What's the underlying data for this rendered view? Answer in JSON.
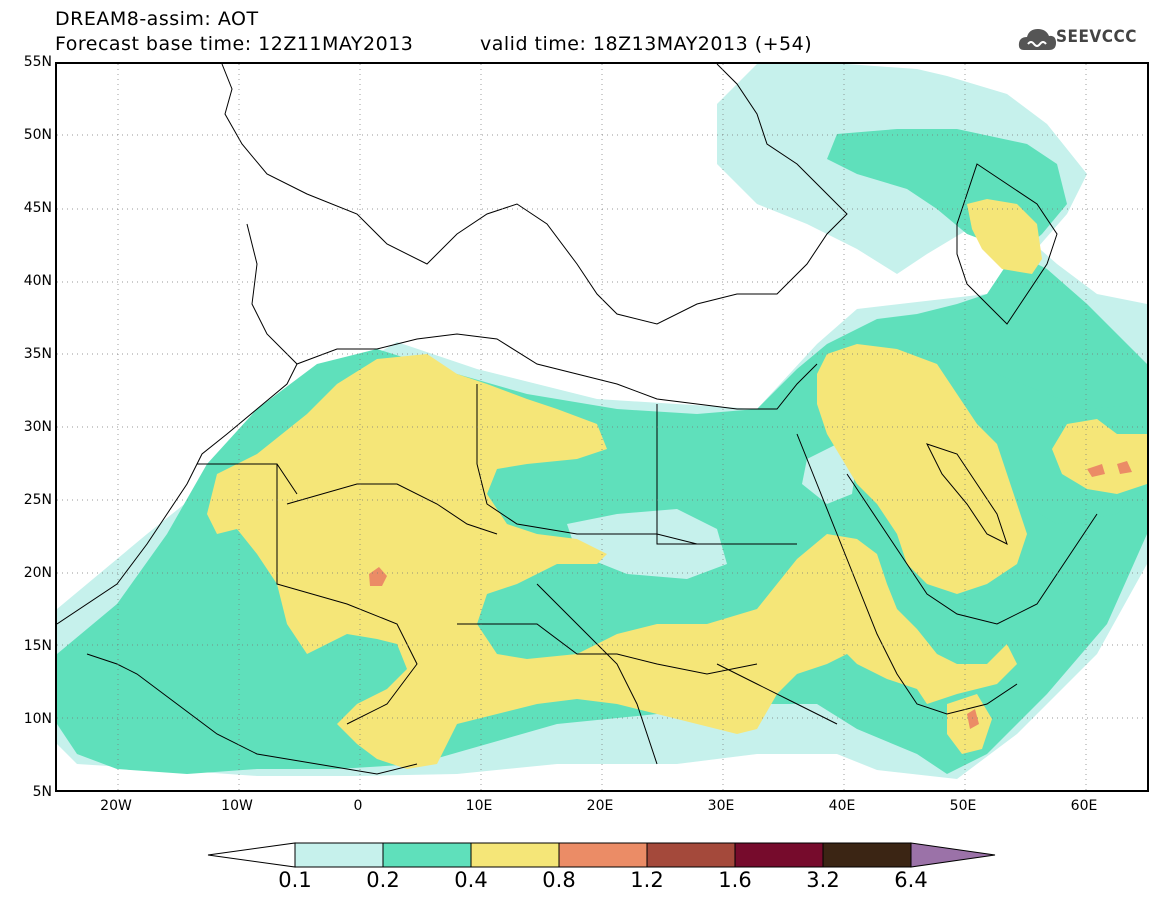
{
  "header": {
    "line1": "DREAM8-assim: AOT",
    "line2_left": "Forecast base time: 12Z11MAY2013",
    "line2_right": "valid time: 18Z13MAY2013 (+54)"
  },
  "logo": {
    "text": "SEEVCCC",
    "icon": "cloud-logo-icon"
  },
  "map": {
    "lon_range": [
      -25,
      65
    ],
    "lat_range": [
      5,
      55
    ],
    "lat_ticks": [
      "55N",
      "50N",
      "45N",
      "40N",
      "35N",
      "30N",
      "25N",
      "20N",
      "15N",
      "10N",
      "5N"
    ],
    "lon_ticks": [
      "20W",
      "10W",
      "0",
      "10E",
      "20E",
      "30E",
      "40E",
      "50E",
      "60E"
    ],
    "grid": "dotted"
  },
  "colorbar": {
    "labels": [
      "0.1",
      "0.2",
      "0.4",
      "0.8",
      "1.2",
      "1.6",
      "3.2",
      "6.4"
    ],
    "colors": [
      "#ffffff",
      "#c6f1ec",
      "#5fe0bb",
      "#f5e678",
      "#eb8c66",
      "#a4493b",
      "#760b2c",
      "#3b2514",
      "#9b72a8"
    ]
  }
}
